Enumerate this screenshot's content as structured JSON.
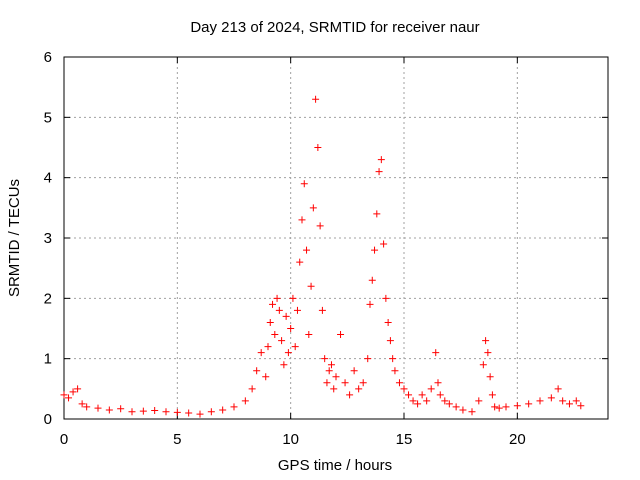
{
  "chart_data": {
    "type": "scatter",
    "title": "Day 213 of 2024, SRMTID for receiver naur",
    "xlabel": "GPS time / hours",
    "ylabel": "SRMTID / TECUs",
    "xlim": [
      0,
      24
    ],
    "ylim": [
      0,
      6
    ],
    "xticks": [
      0,
      5,
      10,
      15,
      20
    ],
    "yticks": [
      0,
      1,
      2,
      3,
      4,
      5,
      6
    ],
    "grid": true,
    "marker": "+",
    "marker_color": "#ff0000",
    "series": [
      {
        "name": "SRMTID",
        "x": [
          0.0,
          0.2,
          0.4,
          0.6,
          0.8,
          1.0,
          1.5,
          2.0,
          2.5,
          3.0,
          3.5,
          4.0,
          4.5,
          5.0,
          5.5,
          6.0,
          6.5,
          7.0,
          7.5,
          8.0,
          8.3,
          8.5,
          8.7,
          8.9,
          9.0,
          9.1,
          9.2,
          9.3,
          9.4,
          9.5,
          9.6,
          9.7,
          9.8,
          9.9,
          10.0,
          10.1,
          10.2,
          10.3,
          10.4,
          10.5,
          10.6,
          10.7,
          10.8,
          10.9,
          11.0,
          11.1,
          11.2,
          11.3,
          11.4,
          11.5,
          11.6,
          11.7,
          11.8,
          11.9,
          12.0,
          12.2,
          12.4,
          12.6,
          12.8,
          13.0,
          13.2,
          13.4,
          13.5,
          13.6,
          13.7,
          13.8,
          13.9,
          14.0,
          14.1,
          14.2,
          14.3,
          14.4,
          14.5,
          14.6,
          14.8,
          15.0,
          15.2,
          15.4,
          15.6,
          15.8,
          16.0,
          16.2,
          16.4,
          16.5,
          16.6,
          16.8,
          17.0,
          17.3,
          17.6,
          18.0,
          18.3,
          18.5,
          18.6,
          18.7,
          18.8,
          18.9,
          19.0,
          19.2,
          19.5,
          20.0,
          20.5,
          21.0,
          21.5,
          21.8,
          22.0,
          22.3,
          22.6,
          22.8
        ],
        "y": [
          0.4,
          0.35,
          0.45,
          0.5,
          0.25,
          0.2,
          0.18,
          0.15,
          0.17,
          0.12,
          0.13,
          0.14,
          0.12,
          0.11,
          0.1,
          0.08,
          0.12,
          0.15,
          0.2,
          0.3,
          0.5,
          0.8,
          1.1,
          0.7,
          1.2,
          1.6,
          1.9,
          1.4,
          2.0,
          1.8,
          1.3,
          0.9,
          1.7,
          1.1,
          1.5,
          2.0,
          1.2,
          1.8,
          2.6,
          3.3,
          3.9,
          2.8,
          1.4,
          2.2,
          3.5,
          5.3,
          4.5,
          3.2,
          1.8,
          1.0,
          0.6,
          0.8,
          0.9,
          0.5,
          0.7,
          1.4,
          0.6,
          0.4,
          0.8,
          0.5,
          0.6,
          1.0,
          1.9,
          2.3,
          2.8,
          3.4,
          4.1,
          4.3,
          2.9,
          2.0,
          1.6,
          1.3,
          1.0,
          0.8,
          0.6,
          0.5,
          0.4,
          0.3,
          0.25,
          0.4,
          0.3,
          0.5,
          1.1,
          0.6,
          0.4,
          0.3,
          0.25,
          0.2,
          0.15,
          0.12,
          0.3,
          0.9,
          1.3,
          1.1,
          0.7,
          0.4,
          0.2,
          0.18,
          0.2,
          0.22,
          0.25,
          0.3,
          0.35,
          0.5,
          0.3,
          0.25,
          0.3,
          0.22
        ]
      }
    ]
  }
}
